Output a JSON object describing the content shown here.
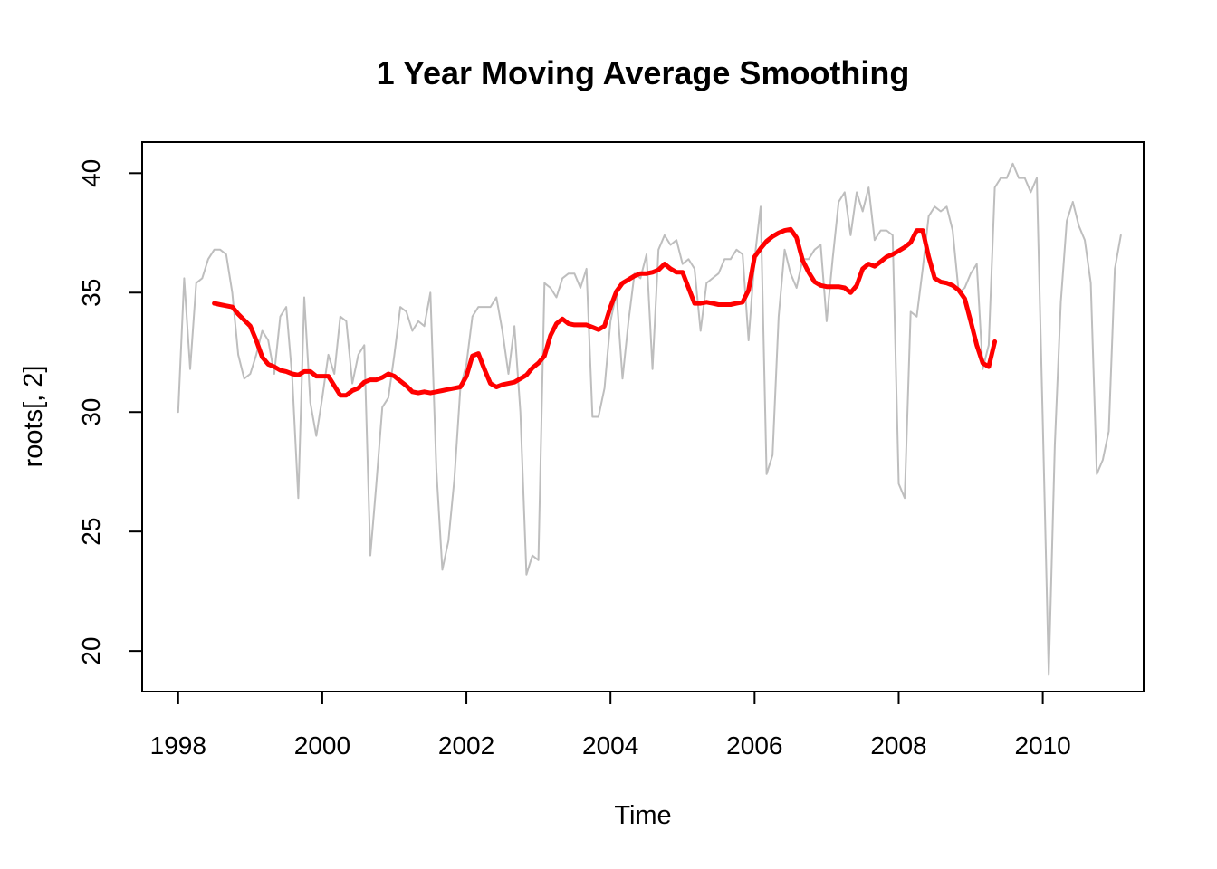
{
  "chart_data": {
    "type": "line",
    "title": "1 Year Moving Average Smoothing",
    "xlabel": "Time",
    "ylabel": "roots[, 2]",
    "xlim": [
      1997.5,
      2011.4
    ],
    "ylim": [
      18.3,
      41.3
    ],
    "x_ticks": [
      1998,
      2000,
      2002,
      2004,
      2006,
      2008,
      2010
    ],
    "y_ticks": [
      20,
      25,
      30,
      35,
      40
    ],
    "grid": false,
    "legend": "none",
    "series": [
      {
        "color": "#bebebe",
        "start": 1998.0,
        "step": 0.0833333,
        "values": [
          30.0,
          35.6,
          31.8,
          35.4,
          35.6,
          36.4,
          36.8,
          36.8,
          36.6,
          35.0,
          32.4,
          31.4,
          31.6,
          32.4,
          33.4,
          33.0,
          31.6,
          34.0,
          34.4,
          31.4,
          26.4,
          34.8,
          30.4,
          29.0,
          30.6,
          32.4,
          31.6,
          34.0,
          33.8,
          31.2,
          32.4,
          32.8,
          24.0,
          27.0,
          30.2,
          30.6,
          32.4,
          34.4,
          34.2,
          33.4,
          33.8,
          33.6,
          35.0,
          27.6,
          23.4,
          24.6,
          27.2,
          31.0,
          32.0,
          34.0,
          34.4,
          34.4,
          34.4,
          34.8,
          33.4,
          31.6,
          33.6,
          30.0,
          23.2,
          24.0,
          23.8,
          35.4,
          35.2,
          34.8,
          35.6,
          35.8,
          35.8,
          35.2,
          36.0,
          29.8,
          29.8,
          31.0,
          33.8,
          35.0,
          31.4,
          33.8,
          35.8,
          35.6,
          36.6,
          31.8,
          36.8,
          37.4,
          37.0,
          37.2,
          36.2,
          36.4,
          36.0,
          33.4,
          35.4,
          35.6,
          35.8,
          36.4,
          36.4,
          36.8,
          36.6,
          33.0,
          36.4,
          38.6,
          27.4,
          28.2,
          34.0,
          36.8,
          35.8,
          35.2,
          36.4,
          36.4,
          36.8,
          37.0,
          33.8,
          36.4,
          38.8,
          39.2,
          37.4,
          39.2,
          38.4,
          39.4,
          37.2,
          37.6,
          37.6,
          37.4,
          27.0,
          26.4,
          34.2,
          34.0,
          36.0,
          38.2,
          38.6,
          38.4,
          38.6,
          37.6,
          35.0,
          35.2,
          35.8,
          36.2,
          31.8,
          32.8,
          39.4,
          39.8,
          39.8,
          40.4,
          39.8,
          39.8,
          39.2,
          39.8,
          29.6,
          19.0,
          28.6,
          34.6,
          38.0,
          38.8,
          37.8,
          37.2,
          35.4,
          27.4,
          28.0,
          29.2,
          36.0,
          37.4
        ]
      },
      {
        "color": "#ff0000",
        "start": 1998.5,
        "step": 0.0833333,
        "values": [
          34.55,
          34.5,
          34.45,
          34.4,
          34.1,
          33.85,
          33.6,
          33.0,
          32.3,
          32.0,
          31.9,
          31.75,
          31.7,
          31.6,
          31.55,
          31.7,
          31.7,
          31.5,
          31.5,
          31.5,
          31.1,
          30.7,
          30.7,
          30.9,
          31.0,
          31.25,
          31.35,
          31.35,
          31.45,
          31.6,
          31.5,
          31.3,
          31.1,
          30.85,
          30.8,
          30.85,
          30.8,
          30.85,
          30.9,
          30.95,
          31.0,
          31.05,
          31.5,
          32.35,
          32.45,
          31.8,
          31.2,
          31.05,
          31.15,
          31.2,
          31.25,
          31.4,
          31.55,
          31.85,
          32.05,
          32.35,
          33.2,
          33.7,
          33.9,
          33.7,
          33.65,
          33.65,
          33.65,
          33.55,
          33.45,
          33.6,
          34.4,
          35.05,
          35.4,
          35.55,
          35.7,
          35.8,
          35.8,
          35.85,
          35.95,
          36.2,
          36.0,
          35.85,
          35.85,
          35.2,
          34.55,
          34.55,
          34.6,
          34.55,
          34.5,
          34.5,
          34.5,
          34.55,
          34.6,
          35.1,
          36.5,
          36.85,
          37.15,
          37.35,
          37.5,
          37.6,
          37.65,
          37.3,
          36.35,
          35.85,
          35.45,
          35.3,
          35.25,
          35.25,
          35.25,
          35.2,
          35.0,
          35.3,
          36.0,
          36.2,
          36.1,
          36.3,
          36.5,
          36.6,
          36.75,
          36.9,
          37.1,
          37.6,
          37.6,
          36.5,
          35.6,
          35.45,
          35.4,
          35.3,
          35.1,
          34.75,
          33.8,
          32.8,
          32.05,
          31.9,
          32.95
        ]
      }
    ]
  }
}
